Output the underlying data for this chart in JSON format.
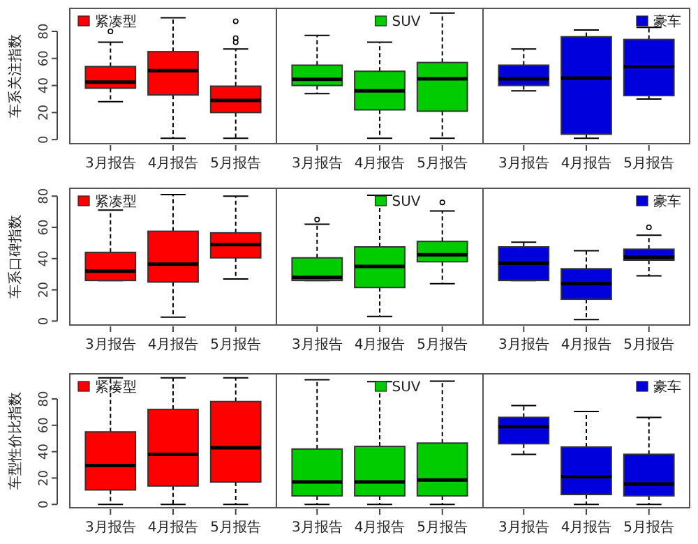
{
  "chart_data": [
    {
      "type": "box",
      "ylabel": "车系关注指数",
      "categories": [
        "3月报告",
        "4月报告",
        "5月报告"
      ],
      "ylim": [
        -3,
        97
      ],
      "yticks": [
        0,
        20,
        40,
        60,
        80
      ],
      "legend": "top left",
      "series": [
        {
          "name": "紧凑型",
          "color": "#ff0000",
          "boxes": [
            {
              "low": 28,
              "q1": 38,
              "median": 42.5,
              "q3": 54,
              "high": 72,
              "outliers": [
                80
              ]
            },
            {
              "low": 1,
              "q1": 33,
              "median": 51,
              "q3": 65,
              "high": 90
            },
            {
              "low": 1,
              "q1": 20,
              "median": 29,
              "q3": 39.5,
              "high": 67,
              "outliers": [
                72,
                75,
                87.5
              ]
            }
          ]
        }
      ]
    },
    {
      "type": "box",
      "categories": [
        "3月报告",
        "4月报告",
        "5月报告"
      ],
      "ylim": [
        -3,
        97
      ],
      "tick_labels": "x",
      "legend": "top",
      "series": [
        {
          "name": "SUV",
          "color": "#00cc00",
          "boxes": [
            {
              "low": 34,
              "q1": 40,
              "median": 44.5,
              "q3": 55,
              "high": 77
            },
            {
              "low": 1,
              "q1": 22,
              "median": 36,
              "q3": 50.5,
              "high": 72
            },
            {
              "low": 1,
              "q1": 21,
              "median": 45,
              "q3": 57,
              "high": 93.5
            }
          ]
        }
      ]
    },
    {
      "type": "box",
      "categories": [
        "3月报告",
        "4月报告",
        "5月报告"
      ],
      "ylim": [
        -3,
        97
      ],
      "tick_labels": "x",
      "legend": "top right",
      "series": [
        {
          "name": "豪车",
          "color": "#0000dd",
          "boxes": [
            {
              "low": 36,
              "q1": 40,
              "median": 45,
              "q3": 55,
              "high": 67
            },
            {
              "low": 1,
              "q1": 4,
              "median": 45.5,
              "q3": 76,
              "high": 81
            },
            {
              "low": 30,
              "q1": 32.5,
              "median": 54,
              "q3": 74,
              "high": 83
            }
          ]
        }
      ]
    },
    {
      "type": "box",
      "ylabel": "车系口碑指数",
      "categories": [
        "3月报告",
        "4月报告",
        "5月报告"
      ],
      "ylim": [
        -2.5,
        85
      ],
      "yticks": [
        0,
        20,
        40,
        60,
        80
      ],
      "legend": "top left",
      "series": [
        {
          "name": "紧凑型",
          "color": "#ff0000",
          "boxes": [
            {
              "low": 26,
              "q1": 26,
              "median": 32,
              "q3": 44,
              "high": 71
            },
            {
              "low": 2.5,
              "q1": 25,
              "median": 36.5,
              "q3": 57.5,
              "high": 81
            },
            {
              "low": 27,
              "q1": 40.5,
              "median": 49,
              "q3": 56.5,
              "high": 80
            }
          ]
        }
      ]
    },
    {
      "type": "box",
      "categories": [
        "3月报告",
        "4月报告",
        "5月报告"
      ],
      "ylim": [
        -2.5,
        85
      ],
      "tick_labels": "x",
      "legend": "top",
      "series": [
        {
          "name": "SUV",
          "color": "#00cc00",
          "boxes": [
            {
              "low": 26,
              "q1": 26,
              "median": 28,
              "q3": 40.5,
              "high": 62,
              "outliers": [
                65
              ]
            },
            {
              "low": 3,
              "q1": 21.5,
              "median": 35,
              "q3": 47.5,
              "high": 80.5
            },
            {
              "low": 24,
              "q1": 38,
              "median": 42.5,
              "q3": 51,
              "high": 70.5,
              "outliers": [
                76
              ]
            }
          ]
        }
      ]
    },
    {
      "type": "box",
      "categories": [
        "3月报告",
        "4月报告",
        "5月报告"
      ],
      "ylim": [
        -2.5,
        85
      ],
      "tick_labels": "x",
      "legend": "top right",
      "series": [
        {
          "name": "豪车",
          "color": "#0000dd",
          "boxes": [
            {
              "low": 26,
              "q1": 26,
              "median": 37,
              "q3": 47.5,
              "high": 50.5
            },
            {
              "low": 1,
              "q1": 14,
              "median": 24,
              "q3": 33.5,
              "high": 45
            },
            {
              "low": 29,
              "q1": 39,
              "median": 41,
              "q3": 46,
              "high": 55,
              "outliers": [
                60
              ]
            }
          ]
        }
      ]
    },
    {
      "type": "box",
      "ylabel": "车型性价比指数",
      "categories": [
        "3月报告",
        "4月报告",
        "5月报告"
      ],
      "ylim": [
        -2.5,
        99
      ],
      "yticks": [
        0,
        20,
        40,
        60,
        80
      ],
      "legend": "top left",
      "series": [
        {
          "name": "紧凑型",
          "color": "#ff0000",
          "boxes": [
            {
              "low": 0,
              "q1": 11,
              "median": 29.5,
              "q3": 55,
              "high": 96
            },
            {
              "low": 0,
              "q1": 14,
              "median": 38,
              "q3": 72,
              "high": 96
            },
            {
              "low": 0,
              "q1": 17,
              "median": 43,
              "q3": 78,
              "high": 96
            }
          ]
        }
      ]
    },
    {
      "type": "box",
      "categories": [
        "3月报告",
        "4月报告",
        "5月报告"
      ],
      "ylim": [
        -2.5,
        99
      ],
      "tick_labels": "x",
      "legend": "top",
      "series": [
        {
          "name": "SUV",
          "color": "#00cc00",
          "boxes": [
            {
              "low": 0,
              "q1": 6.5,
              "median": 17,
              "q3": 42,
              "high": 94.5
            },
            {
              "low": 0,
              "q1": 6.5,
              "median": 17,
              "q3": 44,
              "high": 93
            },
            {
              "low": 0,
              "q1": 6.5,
              "median": 18.5,
              "q3": 46.5,
              "high": 93.5
            }
          ]
        }
      ]
    },
    {
      "type": "box",
      "categories": [
        "3月报告",
        "4月报告",
        "5月报告"
      ],
      "ylim": [
        -2.5,
        99
      ],
      "tick_labels": "x",
      "legend": "top right",
      "series": [
        {
          "name": "豪车",
          "color": "#0000dd",
          "boxes": [
            {
              "low": 38,
              "q1": 46,
              "median": 59,
              "q3": 66,
              "high": 75
            },
            {
              "low": 0,
              "q1": 7.5,
              "median": 21,
              "q3": 43.5,
              "high": 70.5
            },
            {
              "low": 0,
              "q1": 6.5,
              "median": 15.5,
              "q3": 38,
              "high": 66
            }
          ]
        }
      ]
    }
  ]
}
